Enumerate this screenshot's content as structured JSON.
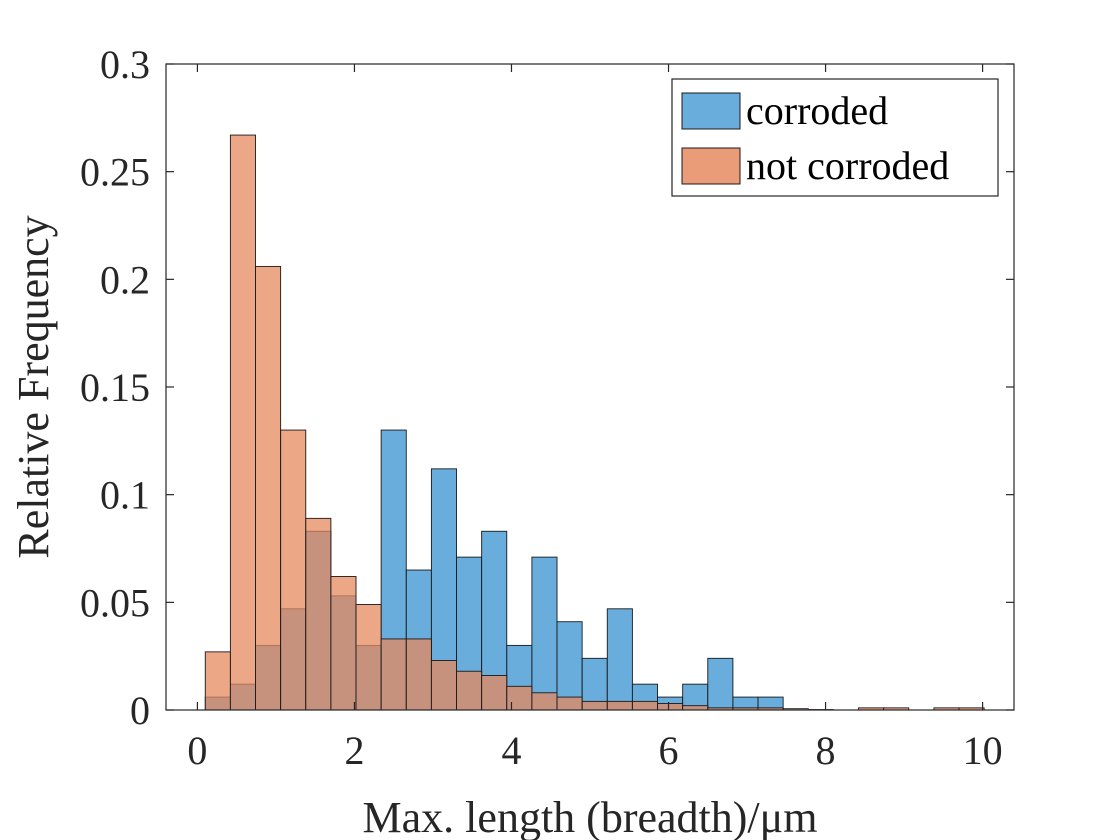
{
  "chart_data": {
    "type": "bar",
    "xlabel": "Max. length (breadth)/μm",
    "ylabel": "Relative Frequency",
    "xlim": [
      -0.4,
      10.4
    ],
    "ylim": [
      0,
      0.3
    ],
    "xticks": [
      0,
      2,
      4,
      6,
      8,
      10
    ],
    "yticks": [
      0,
      0.05,
      0.1,
      0.15,
      0.2,
      0.25,
      0.3
    ],
    "xtick_labels": [
      "0",
      "2",
      "4",
      "6",
      "8",
      "10"
    ],
    "ytick_labels": [
      "0",
      "0.05",
      "0.1",
      "0.15",
      "0.2",
      "0.25",
      "0.3"
    ],
    "bin_edges": [
      0.1,
      0.42,
      0.74,
      1.06,
      1.38,
      1.7,
      2.02,
      2.34,
      2.66,
      2.98,
      3.3,
      3.62,
      3.94,
      4.26,
      4.58,
      4.9,
      5.22,
      5.54,
      5.86,
      6.18,
      6.5,
      6.82,
      7.14,
      7.46,
      7.78,
      8.1,
      8.42,
      8.74,
      9.06,
      9.38,
      9.7,
      10.02
    ],
    "series": [
      {
        "name": "corroded",
        "color": "#4d9fd6",
        "values": [
          0.006,
          0.012,
          0.03,
          0.047,
          0.083,
          0.053,
          0.03,
          0.13,
          0.065,
          0.112,
          0.071,
          0.083,
          0.03,
          0.071,
          0.041,
          0.024,
          0.047,
          0.012,
          0.006,
          0.012,
          0.024,
          0.006,
          0.006,
          0.0,
          0.0,
          0.0,
          0.0,
          0.0,
          0.0,
          0.0,
          0.0
        ]
      },
      {
        "name": "not corroded",
        "color": "#e6895f",
        "values": [
          0.027,
          0.267,
          0.206,
          0.13,
          0.089,
          0.062,
          0.049,
          0.033,
          0.033,
          0.023,
          0.018,
          0.016,
          0.011,
          0.008,
          0.006,
          0.004,
          0.004,
          0.004,
          0.003,
          0.002,
          0.001,
          0.001,
          0.001,
          0.0006,
          0.0002,
          0.0,
          0.001,
          0.001,
          0.0,
          0.001,
          0.001
        ]
      }
    ],
    "legend_position": "top-right",
    "grid": false
  }
}
